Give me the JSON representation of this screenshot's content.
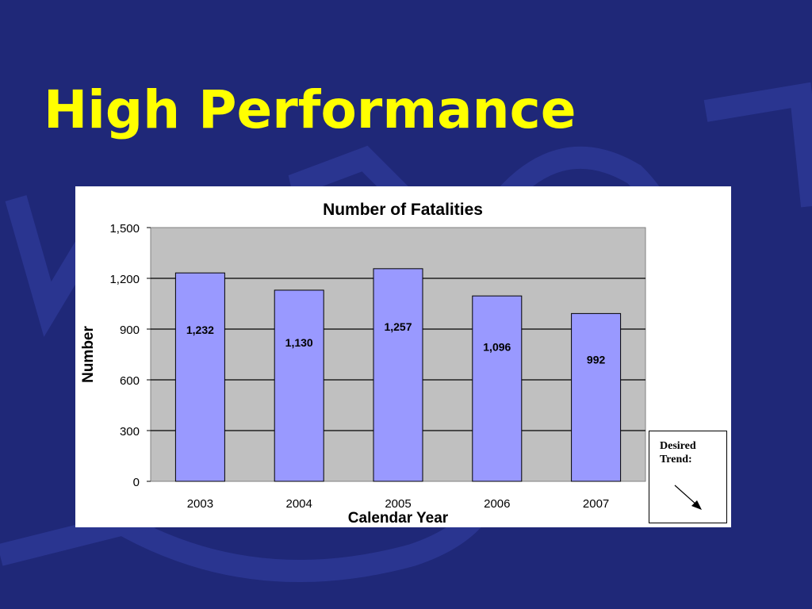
{
  "slide": {
    "title": "High Performance"
  },
  "trend_note": {
    "label": "Desired Trend:"
  },
  "colors": {
    "background": "#1f2878",
    "title": "#ffff00",
    "bar": "#9999ff",
    "plot_area": "#c0c0c0"
  },
  "chart_data": {
    "type": "bar",
    "title": "Number of Fatalities",
    "xlabel": "Calendar Year",
    "ylabel": "Number",
    "categories": [
      "2003",
      "2004",
      "2005",
      "2006",
      "2007"
    ],
    "values": [
      1232,
      1130,
      1257,
      1096,
      992
    ],
    "data_labels": [
      "1,232",
      "1,130",
      "1,257",
      "1,096",
      "992"
    ],
    "ylim": [
      0,
      1500
    ],
    "yticks": [
      0,
      300,
      600,
      900,
      1200,
      1500
    ],
    "ytick_labels": [
      "0",
      "300",
      "600",
      "900",
      "1,200",
      "1,500"
    ],
    "grid": true,
    "legend": "none"
  }
}
